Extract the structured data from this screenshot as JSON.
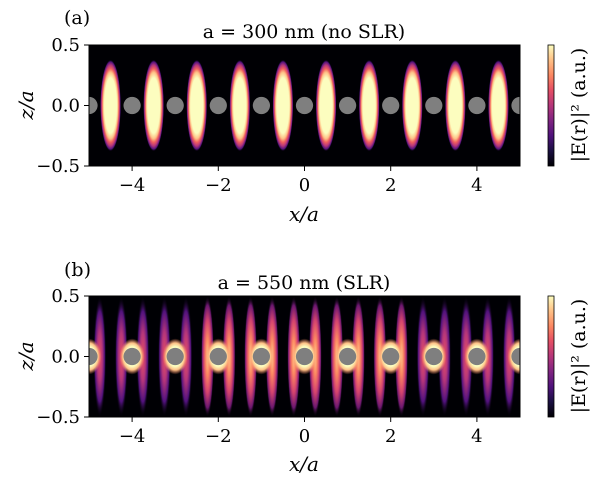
{
  "panels": [
    {
      "panel_label": "(a)",
      "title": "a = 300 nm  (no SLR)",
      "xlabel": "x/a",
      "ylabel": "z/a",
      "colorbar_label": "|E(r)|² (a.u.)"
    },
    {
      "panel_label": "(b)",
      "title": "a = 550 nm  (SLR)",
      "xlabel": "x/a",
      "ylabel": "z/a",
      "colorbar_label": "|E(r)|² (a.u.)"
    }
  ],
  "colors": {
    "colormap_low": "#000004",
    "colormap_mid": "#b73779",
    "colormap_high": "#fcfdbf",
    "particle": "#7f7f7f"
  },
  "chart_data": [
    {
      "type": "heatmap",
      "title": "a = 300 nm  (no SLR)",
      "xlabel": "x/a",
      "ylabel": "z/a",
      "xlim": [
        -5,
        5
      ],
      "ylim": [
        -0.5,
        0.5
      ],
      "xticks": [
        "−4",
        "−2",
        "0",
        "2",
        "4"
      ],
      "yticks": [
        "0.5",
        "0.0",
        "−0.5"
      ],
      "xtick_values": [
        -4,
        -2,
        0,
        2,
        4
      ],
      "ytick_values": [
        0.5,
        0.0,
        -0.5
      ],
      "colormap": "magma",
      "colorbar_label": "|E(r)|² (a.u.)",
      "particle_x": [
        -5,
        -4,
        -3,
        -2,
        -1,
        0,
        1,
        2,
        3,
        4,
        5
      ],
      "particle_z": 0,
      "particle_radius": 0.2,
      "hotspot_x": [
        -4.5,
        -3.5,
        -2.5,
        -1.5,
        -0.5,
        0.5,
        1.5,
        2.5,
        3.5,
        4.5
      ],
      "hotspot_half_width": 0.24,
      "hotspot_half_height": 0.38,
      "field_pattern": "localized"
    },
    {
      "type": "heatmap",
      "title": "a = 550 nm  (SLR)",
      "xlabel": "x/a",
      "ylabel": "z/a",
      "xlim": [
        -5,
        5
      ],
      "ylim": [
        -0.5,
        0.5
      ],
      "xticks": [
        "−4",
        "−2",
        "0",
        "2",
        "4"
      ],
      "yticks": [
        "0.5",
        "0.0",
        "−0.5"
      ],
      "xtick_values": [
        -4,
        -2,
        0,
        2,
        4
      ],
      "ytick_values": [
        0.5,
        0.0,
        -0.5
      ],
      "colormap": "magma",
      "colorbar_label": "|E(r)|² (a.u.)",
      "particle_x": [
        -5,
        -4,
        -3,
        -2,
        -1,
        0,
        1,
        2,
        3,
        4,
        5
      ],
      "particle_z": 0,
      "particle_radius": 0.2,
      "hotspot_x": [
        -4.75,
        -4.25,
        -3.75,
        -3.25,
        -2.75,
        -2.25,
        -1.75,
        -1.25,
        -0.75,
        -0.25,
        0.25,
        0.75,
        1.25,
        1.75,
        2.25,
        2.75,
        3.25,
        3.75,
        4.25,
        4.75
      ],
      "hotspot_half_width": 0.15,
      "hotspot_half_height": 0.5,
      "field_pattern": "extended-standing-wave"
    }
  ]
}
